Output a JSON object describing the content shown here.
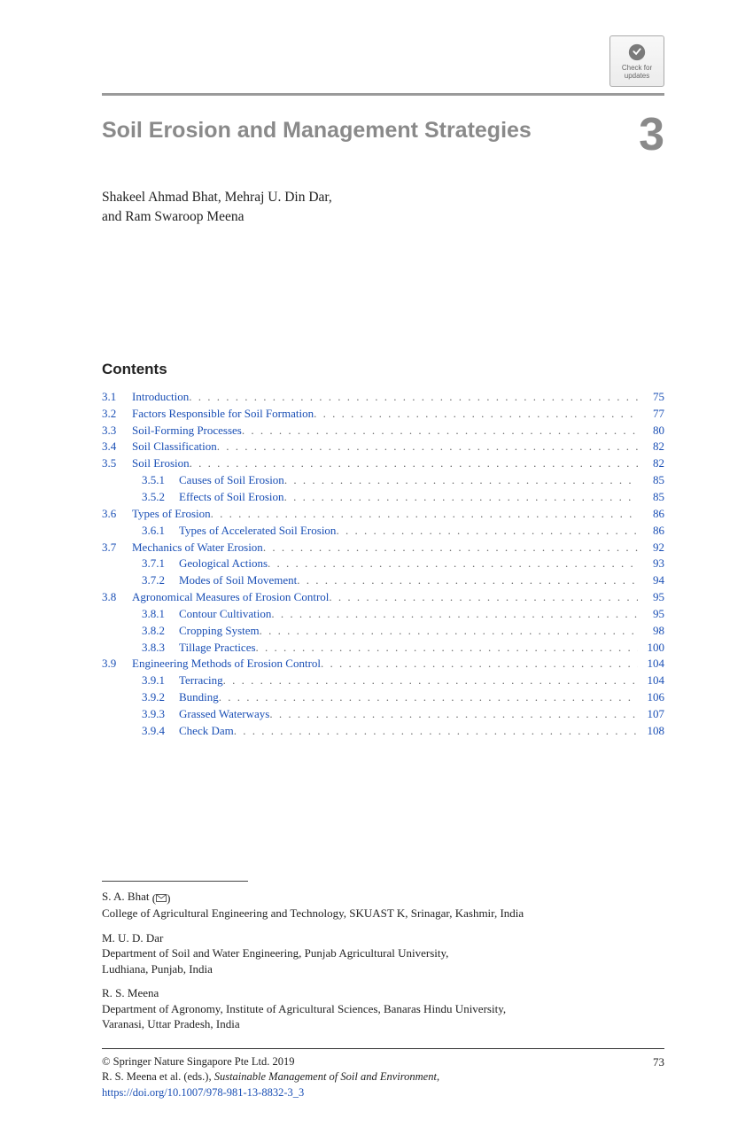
{
  "badge": {
    "line1": "Check for",
    "line2": "updates"
  },
  "chapter": {
    "title": "Soil Erosion and Management Strategies",
    "number": "3",
    "authors_line1": "Shakeel Ahmad Bhat, Mehraj U. Din Dar,",
    "authors_line2": "and Ram Swaroop Meena"
  },
  "contents_heading": "Contents",
  "toc": [
    {
      "num": "3.1",
      "title": "Introduction",
      "page": "75",
      "level": 0
    },
    {
      "num": "3.2",
      "title": "Factors Responsible for Soil Formation",
      "page": "77",
      "level": 0
    },
    {
      "num": "3.3",
      "title": "Soil-Forming Processes",
      "page": "80",
      "level": 0
    },
    {
      "num": "3.4",
      "title": "Soil Classification",
      "page": "82",
      "level": 0
    },
    {
      "num": "3.5",
      "title": "Soil Erosion",
      "page": "82",
      "level": 0
    },
    {
      "num": "3.5.1",
      "title": "Causes of Soil Erosion",
      "page": "85",
      "level": 1
    },
    {
      "num": "3.5.2",
      "title": "Effects of Soil Erosion",
      "page": "85",
      "level": 1
    },
    {
      "num": "3.6",
      "title": "Types of Erosion",
      "page": "86",
      "level": 0
    },
    {
      "num": "3.6.1",
      "title": "Types of Accelerated Soil Erosion",
      "page": "86",
      "level": 1
    },
    {
      "num": "3.7",
      "title": "Mechanics of Water Erosion",
      "page": "92",
      "level": 0
    },
    {
      "num": "3.7.1",
      "title": "Geological Actions",
      "page": "93",
      "level": 1
    },
    {
      "num": "3.7.2",
      "title": "Modes of Soil Movement",
      "page": "94",
      "level": 1
    },
    {
      "num": "3.8",
      "title": "Agronomical Measures of Erosion Control",
      "page": "95",
      "level": 0
    },
    {
      "num": "3.8.1",
      "title": "Contour Cultivation",
      "page": "95",
      "level": 1
    },
    {
      "num": "3.8.2",
      "title": "Cropping System",
      "page": "98",
      "level": 1
    },
    {
      "num": "3.8.3",
      "title": "Tillage Practices",
      "page": "100",
      "level": 1
    },
    {
      "num": "3.9",
      "title": "Engineering Methods of Erosion Control",
      "page": "104",
      "level": 0
    },
    {
      "num": "3.9.1",
      "title": "Terracing",
      "page": "104",
      "level": 1
    },
    {
      "num": "3.9.2",
      "title": "Bunding",
      "page": "106",
      "level": 1
    },
    {
      "num": "3.9.3",
      "title": "Grassed Waterways",
      "page": "107",
      "level": 1
    },
    {
      "num": "3.9.4",
      "title": "Check Dam",
      "page": "108",
      "level": 1
    }
  ],
  "affiliations": [
    {
      "name": "S. A. Bhat",
      "corresponding": true,
      "lines": [
        "College of Agricultural Engineering and Technology, SKUAST K, Srinagar, Kashmir, India"
      ]
    },
    {
      "name": "M. U. D. Dar",
      "corresponding": false,
      "lines": [
        "Department of Soil and Water Engineering, Punjab Agricultural University,",
        "Ludhiana, Punjab, India"
      ]
    },
    {
      "name": "R. S. Meena",
      "corresponding": false,
      "lines": [
        "Department of Agronomy, Institute of Agricultural Sciences, Banaras Hindu University,",
        "Varanasi, Uttar Pradesh, India"
      ]
    }
  ],
  "footer": {
    "copyright": "© Springer Nature Singapore Pte Ltd. 2019",
    "editors": "R. S. Meena et al. (eds.), ",
    "book_title": "Sustainable Management of Soil and Environment",
    "doi": "https://doi.org/10.1007/978-981-13-8832-3_3",
    "page_number": "73"
  },
  "colors": {
    "link": "#1a4fb5",
    "grey_heading": "#8a8a8a",
    "text": "#222222"
  }
}
